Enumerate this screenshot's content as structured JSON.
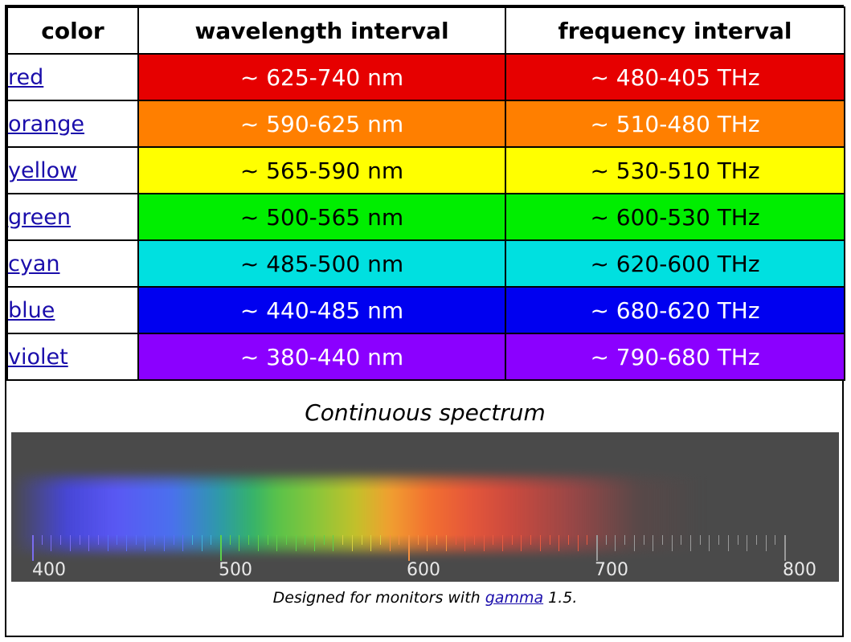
{
  "table": {
    "headers": [
      "color",
      "wavelength interval",
      "frequency interval"
    ],
    "rows": [
      {
        "name": "red",
        "wavelength": "~ 625-740 nm",
        "frequency": "~ 480-405 THz",
        "bg": "#e60000",
        "fg": "#ffffff"
      },
      {
        "name": "orange",
        "wavelength": "~ 590-625 nm",
        "frequency": "~ 510-480 THz",
        "bg": "#ff7f00",
        "fg": "#ffffff"
      },
      {
        "name": "yellow",
        "wavelength": "~ 565-590 nm",
        "frequency": "~ 530-510 THz",
        "bg": "#ffff00",
        "fg": "#000000"
      },
      {
        "name": "green",
        "wavelength": "~ 500-565 nm",
        "frequency": "~ 600-530 THz",
        "bg": "#00ee00",
        "fg": "#000000"
      },
      {
        "name": "cyan",
        "wavelength": "~ 485-500 nm",
        "frequency": "~ 620-600 THz",
        "bg": "#00e0e0",
        "fg": "#000000"
      },
      {
        "name": "blue",
        "wavelength": "~ 440-485 nm",
        "frequency": "~ 680-620 THz",
        "bg": "#0000f0",
        "fg": "#ffffff"
      },
      {
        "name": "violet",
        "wavelength": "~ 380-440 nm",
        "frequency": "~ 790-680 THz",
        "bg": "#8b00ff",
        "fg": "#ffffff"
      }
    ]
  },
  "spectrum": {
    "title": "Continuous spectrum",
    "axis_ticks": [
      "400",
      "500",
      "600",
      "700",
      "800"
    ]
  },
  "caption": {
    "prefix": "Designed for monitors with ",
    "link": "gamma",
    "suffix": " 1.5."
  }
}
